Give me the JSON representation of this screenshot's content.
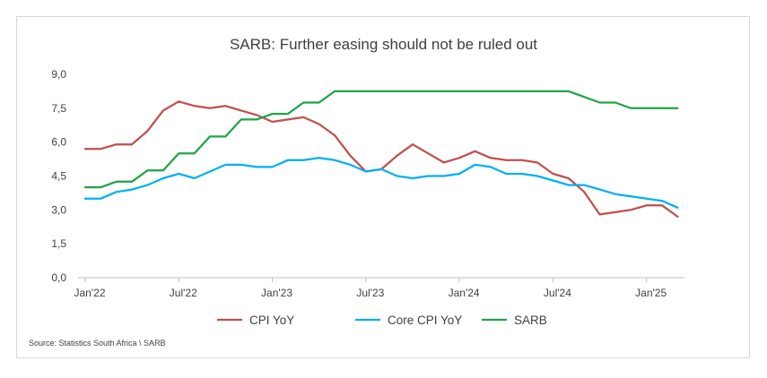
{
  "chart_data": {
    "type": "line",
    "title": "SARB: Further easing should not be ruled out",
    "source": "Source:  Statistics South Africa \\ SARB",
    "ylim": [
      0,
      9
    ],
    "yticks": [
      "0,0",
      "1,5",
      "3,0",
      "4,5",
      "6,0",
      "7,5",
      "9,0"
    ],
    "ytick_values": [
      0,
      1.5,
      3,
      4.5,
      6,
      7.5,
      9
    ],
    "xticks": [
      "Jan'22",
      "Jul'22",
      "Jan'23",
      "Jul'23",
      "Jan'24",
      "Jul'24",
      "Jan'25"
    ],
    "xtick_index": [
      0,
      6,
      12,
      18,
      24,
      30,
      36
    ],
    "x_count": 39,
    "grid": false,
    "legend_position": "bottom",
    "series": [
      {
        "name": "CPI YoY",
        "color": "#c0504d",
        "values": [
          5.7,
          5.7,
          5.9,
          5.9,
          6.5,
          7.4,
          7.8,
          7.6,
          7.5,
          7.6,
          7.4,
          7.2,
          6.9,
          7.0,
          7.1,
          6.8,
          6.3,
          5.4,
          4.7,
          4.8,
          5.4,
          5.9,
          5.5,
          5.1,
          5.3,
          5.6,
          5.3,
          5.2,
          5.2,
          5.1,
          4.6,
          4.4,
          3.8,
          2.8,
          2.9,
          3.0,
          3.2,
          3.2,
          2.7
        ]
      },
      {
        "name": "Core CPI YoY",
        "color": "#00b0f0",
        "values": [
          3.5,
          3.5,
          3.8,
          3.9,
          4.1,
          4.4,
          4.6,
          4.4,
          4.7,
          5.0,
          5.0,
          4.9,
          4.9,
          5.2,
          5.2,
          5.3,
          5.2,
          5.0,
          4.7,
          4.8,
          4.5,
          4.4,
          4.5,
          4.5,
          4.6,
          5.0,
          4.9,
          4.6,
          4.6,
          4.5,
          4.3,
          4.1,
          4.1,
          3.9,
          3.7,
          3.6,
          3.5,
          3.4,
          3.1
        ]
      },
      {
        "name": "SARB",
        "color": "#21a348",
        "values": [
          4.0,
          4.0,
          4.25,
          4.25,
          4.75,
          4.75,
          5.5,
          5.5,
          6.25,
          6.25,
          7.0,
          7.0,
          7.25,
          7.25,
          7.75,
          7.75,
          8.25,
          8.25,
          8.25,
          8.25,
          8.25,
          8.25,
          8.25,
          8.25,
          8.25,
          8.25,
          8.25,
          8.25,
          8.25,
          8.25,
          8.25,
          8.25,
          8.0,
          7.75,
          7.75,
          7.5,
          7.5,
          7.5,
          7.5
        ]
      }
    ]
  }
}
